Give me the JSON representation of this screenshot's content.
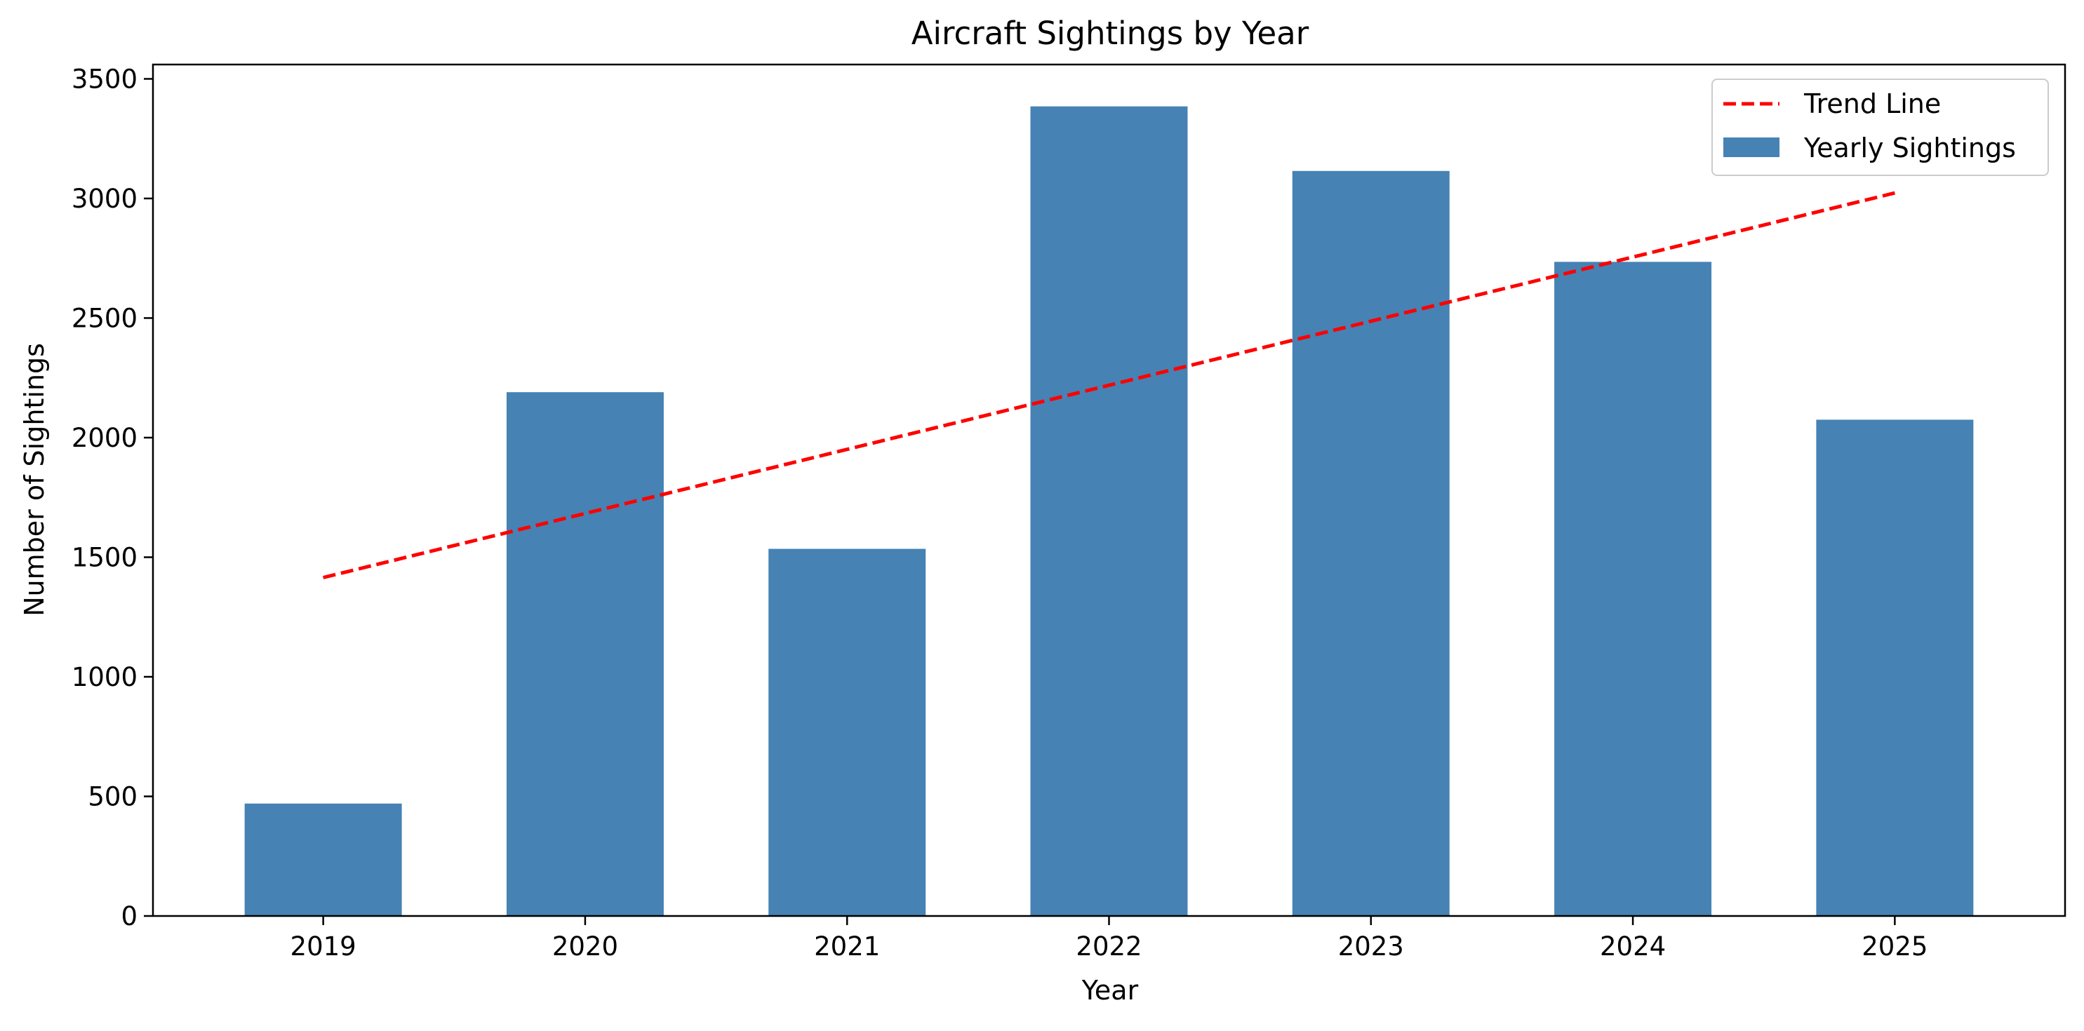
{
  "chart_data": {
    "type": "bar",
    "title": "Aircraft Sightings by Year",
    "xlabel": "Year",
    "ylabel": "Number of Sightings",
    "categories": [
      "2019",
      "2020",
      "2021",
      "2022",
      "2023",
      "2024",
      "2025"
    ],
    "series": [
      {
        "name": "Yearly Sightings",
        "type": "bar",
        "values": [
          470,
          2190,
          1535,
          3385,
          3115,
          2735,
          2075
        ],
        "color": "#4682b4"
      },
      {
        "name": "Trend Line",
        "type": "line",
        "style": "dashed",
        "values": [
          1415,
          1683,
          1951,
          2219,
          2487,
          2755,
          3023
        ],
        "color": "#ff0000"
      }
    ],
    "ylim": [
      0,
      3560
    ],
    "yticks": [
      0,
      500,
      1000,
      1500,
      2000,
      2500,
      3000,
      3500
    ],
    "grid": false,
    "legend_position": "top-right"
  }
}
